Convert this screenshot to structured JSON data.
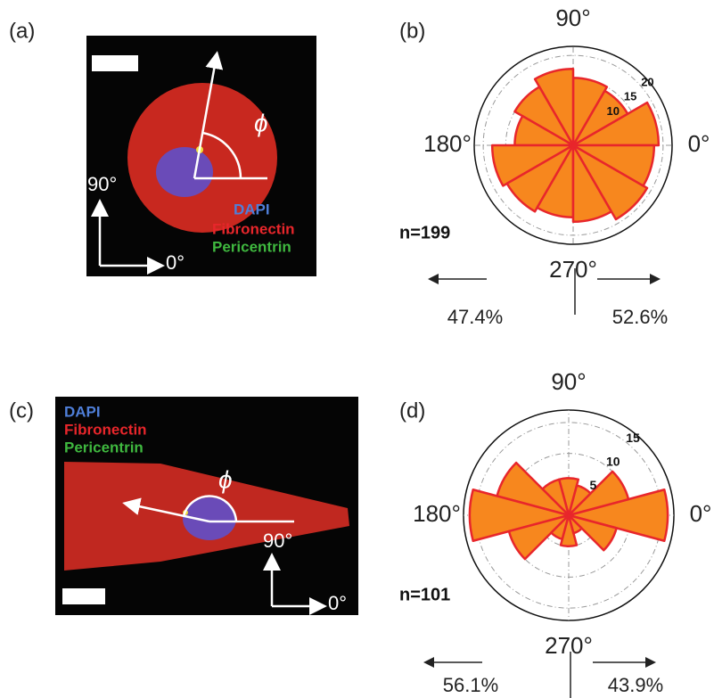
{
  "panels": {
    "a": {
      "label": "(a)",
      "legend": [
        "DAPI",
        "Fibronectin",
        "Pericentrin"
      ],
      "angle_symbol": "ϕ",
      "axis_labels": [
        "90°",
        "0°"
      ]
    },
    "c": {
      "label": "(c)",
      "legend": [
        "DAPI",
        "Fibronectin",
        "Pericentrin"
      ],
      "angle_symbol": "ϕ",
      "axis_labels": [
        "90°",
        "0°"
      ]
    }
  },
  "chart_data": [
    {
      "type": "polar_histogram",
      "label": "(b)",
      "bins": [
        0,
        30,
        60,
        90,
        120,
        150,
        180,
        210,
        240,
        270,
        300,
        330,
        360
      ],
      "values": [
        19,
        14,
        15,
        17,
        15,
        13,
        18,
        17,
        16,
        17,
        19,
        18
      ],
      "color": "#f7871e",
      "edgecolor": "#e8262b",
      "rlim": [
        0,
        22
      ],
      "rticks": [
        10,
        15,
        20
      ],
      "theta_ticks": [
        {
          "value": 0,
          "label": "0°"
        },
        {
          "value": 90,
          "label": "90°"
        },
        {
          "value": 180,
          "label": "180°"
        },
        {
          "value": 270,
          "label": "270°"
        }
      ],
      "annotation": "n=199",
      "split_labels": [
        "47.4%",
        "52.6%"
      ]
    },
    {
      "type": "polar_histogram",
      "label": "(d)",
      "bins": [
        -15,
        15,
        45,
        75,
        105,
        135,
        165,
        195,
        225,
        255,
        285,
        315,
        345
      ],
      "values": [
        16,
        10,
        5,
        6,
        6,
        12,
        16,
        10,
        4,
        5,
        3,
        8
      ],
      "color": "#f7871e",
      "edgecolor": "#e8262b",
      "rlim": [
        0,
        17
      ],
      "rticks": [
        5,
        10,
        15
      ],
      "theta_ticks": [
        {
          "value": 0,
          "label": "0°"
        },
        {
          "value": 90,
          "label": "90°"
        },
        {
          "value": 180,
          "label": "180°"
        },
        {
          "value": 270,
          "label": "270°"
        }
      ],
      "annotation": "n=101",
      "split_labels": [
        "56.1%",
        "43.9%"
      ]
    }
  ]
}
